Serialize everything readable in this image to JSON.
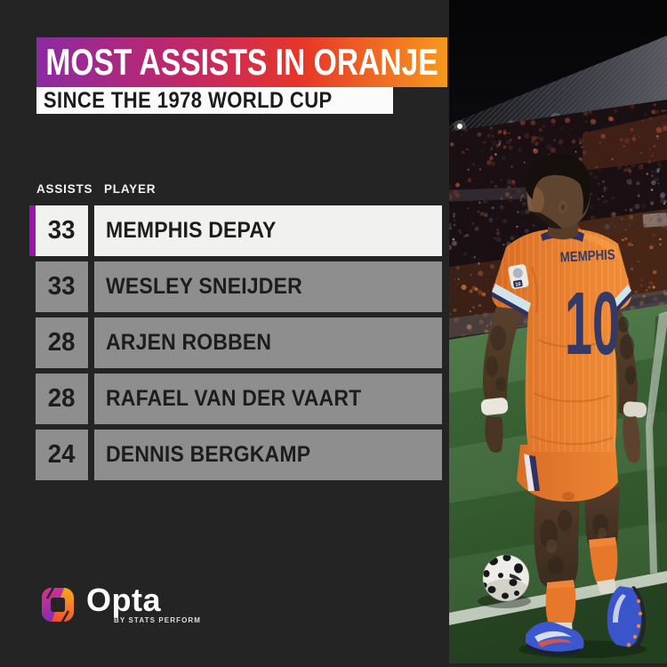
{
  "header": {
    "title": "MOST ASSISTS IN ORANJE",
    "subtitle": "SINCE THE 1978 WORLD CUP"
  },
  "table": {
    "columns": {
      "assists": "ASSISTS",
      "player": "PLAYER"
    },
    "rows": [
      {
        "assists": "33",
        "player": "MEMPHIS DEPAY",
        "highlighted": true
      },
      {
        "assists": "33",
        "player": "WESLEY SNEIJDER",
        "highlighted": false
      },
      {
        "assists": "28",
        "player": "ARJEN ROBBEN",
        "highlighted": false
      },
      {
        "assists": "28",
        "player": "RAFAEL VAN DER VAART",
        "highlighted": false
      },
      {
        "assists": "24",
        "player": "DENNIS BERGKAMP",
        "highlighted": false
      }
    ]
  },
  "photo": {
    "jersey_name": "MEMPHIS",
    "jersey_number": "10",
    "sleeve_patch_text": "10"
  },
  "footer": {
    "brand": "Opta",
    "tagline": "BY STATS PERFORM"
  },
  "colors": {
    "background": "#242424",
    "accent_purple": "#9C13AE",
    "highlight_row": "#F1F1EF",
    "row_gray": "#8E8E8E",
    "title_gradient": [
      "#8B2AA2",
      "#C42864",
      "#E63529",
      "#F6991E"
    ]
  },
  "chart_data": {
    "type": "table",
    "title": "MOST ASSISTS IN ORANJE",
    "subtitle": "SINCE THE 1978 WORLD CUP",
    "columns": [
      "ASSISTS",
      "PLAYER"
    ],
    "rows": [
      [
        33,
        "MEMPHIS DEPAY"
      ],
      [
        33,
        "WESLEY SNEIJDER"
      ],
      [
        28,
        "ARJEN ROBBEN"
      ],
      [
        28,
        "RAFAEL VAN DER VAART"
      ],
      [
        24,
        "DENNIS BERGKAMP"
      ]
    ],
    "highlighted_row": "MEMPHIS DEPAY"
  }
}
